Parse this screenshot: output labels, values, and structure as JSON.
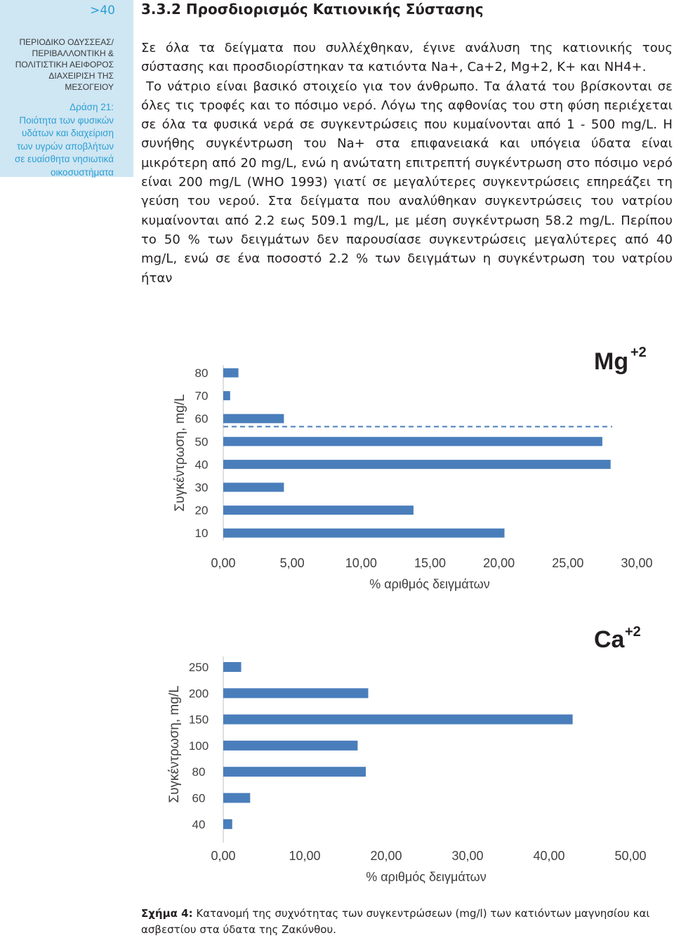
{
  "header": {
    "page_number": ">40",
    "section_title": "3.3.2 Προσδιορισμός Κατιονικής Σύστασης"
  },
  "sidebar": {
    "journal_lines": [
      "ΠΕΡΙΟΔΙΚΟ ΟΔΥΣΣΕΑΣ/",
      "ΠΕΡΙΒΑΛΛΟΝΤΙΚΗ &",
      "ΠΟΛΙΤΙΣΤΙΚΗ ΑΕΙΦΟΡΟΣ",
      "ΔΙΑΧΕΙΡΙΣΗ ΤΗΣ ΜΕΣΟΓΕΙΟΥ"
    ],
    "action_lines": [
      "Δράση 21:",
      "Ποιότητα των φυσικών",
      "υδάτων και διαχείριση",
      "των υγρών αποβλήτων",
      "σε ευαίσθητα νησιωτικά",
      "οικοσυστήματα"
    ]
  },
  "body": {
    "p1": "Σε όλα τα δείγματα που συλλέχθηκαν, έγινε ανάλυση της κατιονικής τους σύστασης και προσδιορίστηκαν τα κατιόντα Na+, Ca+2, Mg+2, K+ και NH4+.",
    "p2": "Το νάτριο είναι βασικό στοιχείο για τον άνθρωπο. Τα άλατά του βρίσκονται σε όλες τις τροφές και το πόσιμο νερό. Λόγω της αφθονίας του στη φύση περιέχεται σε όλα τα φυσικά νερά σε συγκεντρώσεις που κυμαίνονται από 1 - 500 mg/L. Η συνήθης συγκέντρωση του Na+ στα επιφανειακά και υπόγεια ύδατα είναι μικρότερη από 20 mg/L, ενώ η ανώτατη επιτρεπτή συγκέντρωση στο πόσιμο νερό είναι 200 mg/L (WHO 1993) γιατί σε μεγαλύτερες συγκεντρώσεις επηρεάζει τη γεύση του νερού. Στα δείγματα που αναλύθηκαν συγκεντρώσεις του νατρίου κυμαίνονται από 2.2 εως 509.1 mg/L, με μέση συγκέντρωση 58.2 mg/L. Περίπου το 50 % των δειγμάτων δεν παρουσίασε συγκεντρώσεις μεγαλύτερες από 40 mg/L, ενώ σε ένα ποσοστό 2.2 % των δειγμάτων η συγκέντρωση του νατρίου ήταν"
  },
  "chart_data": [
    {
      "type": "bar",
      "orientation": "horizontal",
      "title_main": "Mg",
      "title_sup": "+2",
      "ylabel": "Συγκέντρωση, mg/L",
      "xlabel": "% αριθμός δειγμάτων",
      "categories": [
        "80",
        "70",
        "60",
        "50",
        "40",
        "30",
        "20",
        "10"
      ],
      "values": [
        1.1,
        0.5,
        4.4,
        27.5,
        28.1,
        4.4,
        13.8,
        20.4
      ],
      "xlim": [
        0,
        30
      ],
      "xticks": [
        "0,00",
        "5,00",
        "10,00",
        "15,00",
        "20,00",
        "25,00",
        "30,00"
      ],
      "reference_line_between": [
        "60",
        "50"
      ],
      "bar_color": "#4a7ebb",
      "reference_line_color": "#4a7ebb"
    },
    {
      "type": "bar",
      "orientation": "horizontal",
      "title_main": "Ca",
      "title_sup": "+2",
      "ylabel": "Συγκέντρωση, mg/L",
      "xlabel": "% αριθμός δειγμάτων",
      "categories": [
        "250",
        "200",
        "150",
        "100",
        "80",
        "60",
        "40"
      ],
      "values": [
        2.2,
        17.8,
        42.9,
        16.5,
        17.5,
        3.3,
        1.1
      ],
      "xlim": [
        0,
        50
      ],
      "xticks": [
        "0,00",
        "10,00",
        "20,00",
        "30,00",
        "40,00",
        "50,00"
      ],
      "bar_color": "#4a7ebb"
    }
  ],
  "caption": {
    "label": "Σχήμα 4:",
    "text": " Κατανομή της συχνότητας των συγκεντρώσεων (mg/l) των κατιόντων μαγνησίου και ασβεστίου στα ύδατα της Ζακύνθου."
  }
}
